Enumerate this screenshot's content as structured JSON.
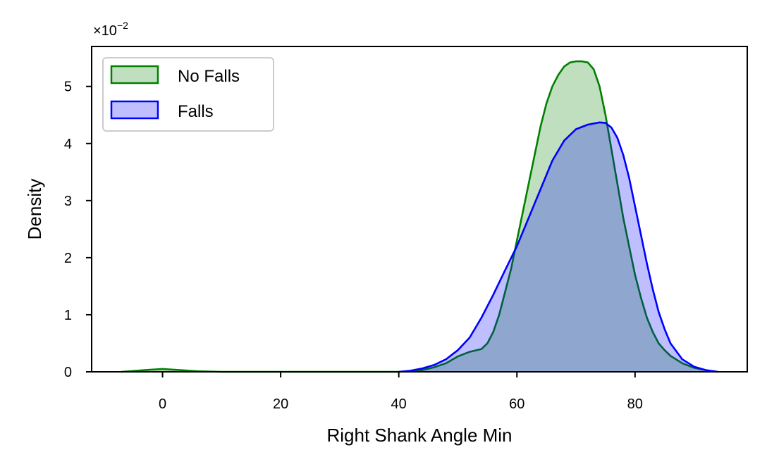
{
  "chart_data": {
    "type": "area",
    "title": "",
    "xlabel": "Right Shank Angle Min",
    "ylabel": "Density",
    "y_multiplier_label": "×10",
    "y_multiplier_exponent": "−2",
    "xlim": [
      -12,
      99
    ],
    "ylim": [
      0,
      5.7
    ],
    "x_ticks": [
      0,
      20,
      40,
      60,
      80
    ],
    "y_ticks": [
      0,
      1,
      2,
      3,
      4,
      5
    ],
    "grid": false,
    "legend_position": "top-left",
    "series": [
      {
        "name": "No Falls",
        "line_color": "#008000",
        "fill_color": "#008000",
        "fill_opacity": 0.25,
        "x": [
          -7,
          -3,
          0,
          3,
          6,
          10,
          20,
          30,
          40,
          44,
          46,
          48,
          50,
          52,
          54,
          55,
          56,
          57,
          58,
          59,
          60,
          61,
          62,
          63,
          64,
          65,
          66,
          67,
          68,
          69,
          70,
          71,
          72,
          73,
          74,
          75,
          76,
          77,
          78,
          79,
          80,
          81,
          82,
          83,
          84,
          85,
          86,
          88,
          90,
          92,
          94
        ],
        "y": [
          0.0,
          0.03,
          0.05,
          0.03,
          0.01,
          0.0,
          0.0,
          0.0,
          0.0,
          0.03,
          0.08,
          0.15,
          0.27,
          0.35,
          0.4,
          0.5,
          0.7,
          1.0,
          1.4,
          1.8,
          2.3,
          2.8,
          3.3,
          3.8,
          4.3,
          4.7,
          5.0,
          5.2,
          5.35,
          5.42,
          5.44,
          5.44,
          5.42,
          5.3,
          5.0,
          4.5,
          3.9,
          3.3,
          2.7,
          2.2,
          1.7,
          1.3,
          0.95,
          0.7,
          0.5,
          0.38,
          0.28,
          0.15,
          0.07,
          0.03,
          0.0
        ]
      },
      {
        "name": "Falls",
        "line_color": "#0000ff",
        "fill_color": "#0000ff",
        "fill_opacity": 0.25,
        "x": [
          40,
          42,
          44,
          46,
          48,
          50,
          52,
          54,
          56,
          58,
          60,
          62,
          64,
          66,
          68,
          70,
          72,
          74,
          75,
          76,
          77,
          78,
          79,
          80,
          81,
          82,
          83,
          84,
          85,
          86,
          88,
          90,
          92,
          94
        ],
        "y": [
          0.0,
          0.02,
          0.06,
          0.12,
          0.22,
          0.38,
          0.6,
          0.95,
          1.35,
          1.78,
          2.2,
          2.7,
          3.2,
          3.7,
          4.05,
          4.25,
          4.33,
          4.37,
          4.36,
          4.28,
          4.1,
          3.8,
          3.4,
          2.9,
          2.4,
          1.9,
          1.45,
          1.05,
          0.75,
          0.5,
          0.22,
          0.09,
          0.03,
          0.0
        ]
      }
    ]
  }
}
